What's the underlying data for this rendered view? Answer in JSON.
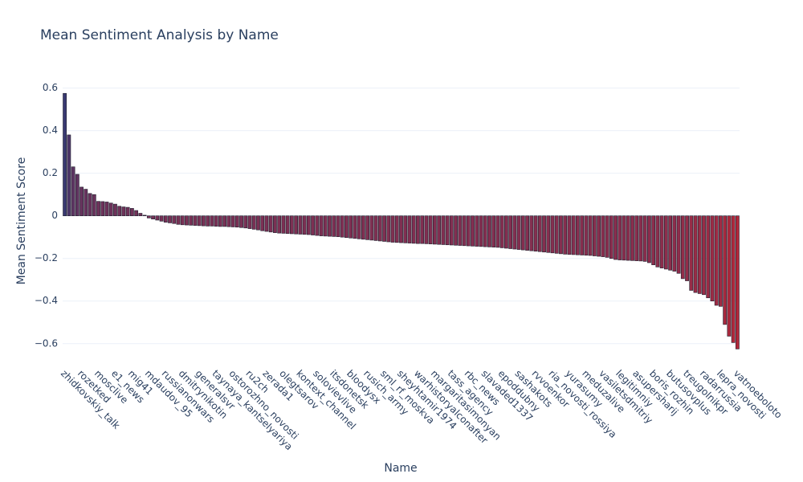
{
  "chart_data": {
    "type": "bar",
    "title": "Mean Sentiment Analysis by Name",
    "xlabel": "Name",
    "ylabel": "Mean Sentiment Score",
    "categories": [
      "zhidkovskiy_talk",
      null,
      null,
      null,
      "rozetked",
      null,
      null,
      null,
      "mosclive",
      null,
      null,
      null,
      "e1_news",
      null,
      null,
      null,
      "mig41",
      null,
      null,
      null,
      "mdaudov_95",
      null,
      null,
      null,
      "russianonwars",
      null,
      null,
      null,
      "dmitrynikotin",
      null,
      null,
      null,
      "generalsvr",
      null,
      null,
      null,
      "taynaya_kantselyariya",
      null,
      null,
      null,
      "ostorozhno_novosti",
      null,
      null,
      null,
      "ru2ch",
      null,
      null,
      null,
      "zerada1",
      null,
      null,
      null,
      "olegtsarov",
      null,
      null,
      null,
      "kontext_channel",
      null,
      null,
      null,
      "solovievlive",
      null,
      null,
      null,
      "itsdonetsk",
      null,
      null,
      null,
      "bloodysx",
      null,
      null,
      null,
      "rusich_army",
      null,
      null,
      null,
      "sml_rf_moskva",
      null,
      null,
      null,
      "sheyhtamir1974",
      null,
      null,
      null,
      "warhistoryalconafter",
      null,
      null,
      null,
      "margaritasimonyan",
      null,
      null,
      null,
      "tass_agency",
      null,
      null,
      null,
      "rbc_news",
      null,
      null,
      null,
      "slavaded1337",
      null,
      null,
      null,
      "epoddubny",
      null,
      null,
      null,
      "sashakots",
      null,
      null,
      null,
      "rvvoenkor",
      null,
      null,
      null,
      "ria_novosti_rossiya",
      null,
      null,
      null,
      "yurasumy",
      null,
      null,
      null,
      "meduzalive",
      null,
      null,
      null,
      "vasiletsdmitriy",
      null,
      null,
      null,
      "legitimniy",
      null,
      null,
      null,
      "asupersharij",
      null,
      null,
      null,
      "boris_rozhin",
      null,
      null,
      null,
      "butusovplus",
      null,
      null,
      null,
      "treugolnikpr",
      null,
      null,
      null,
      "radarrussia",
      null,
      null,
      null,
      "lepra_novosti",
      null,
      null,
      null,
      "vatnoeboloto"
    ],
    "values": [
      0.575,
      0.38,
      0.23,
      0.195,
      0.135,
      0.125,
      0.105,
      0.1,
      0.068,
      0.067,
      0.065,
      0.06,
      0.055,
      0.045,
      0.042,
      0.04,
      0.035,
      0.025,
      0.012,
      0.003,
      -0.01,
      -0.015,
      -0.02,
      -0.025,
      -0.03,
      -0.033,
      -0.036,
      -0.04,
      -0.042,
      -0.043,
      -0.044,
      -0.045,
      -0.046,
      -0.047,
      -0.048,
      -0.048,
      -0.049,
      -0.05,
      -0.05,
      -0.051,
      -0.052,
      -0.053,
      -0.055,
      -0.057,
      -0.06,
      -0.063,
      -0.066,
      -0.07,
      -0.073,
      -0.076,
      -0.079,
      -0.081,
      -0.082,
      -0.083,
      -0.084,
      -0.085,
      -0.086,
      -0.087,
      -0.088,
      -0.09,
      -0.092,
      -0.094,
      -0.095,
      -0.096,
      -0.097,
      -0.098,
      -0.1,
      -0.102,
      -0.104,
      -0.106,
      -0.108,
      -0.11,
      -0.112,
      -0.114,
      -0.116,
      -0.118,
      -0.12,
      -0.122,
      -0.124,
      -0.125,
      -0.126,
      -0.127,
      -0.128,
      -0.129,
      -0.13,
      -0.13,
      -0.131,
      -0.132,
      -0.133,
      -0.134,
      -0.135,
      -0.136,
      -0.137,
      -0.138,
      -0.139,
      -0.14,
      -0.141,
      -0.142,
      -0.143,
      -0.144,
      -0.145,
      -0.146,
      -0.147,
      -0.148,
      -0.15,
      -0.152,
      -0.154,
      -0.156,
      -0.158,
      -0.16,
      -0.162,
      -0.164,
      -0.166,
      -0.168,
      -0.17,
      -0.172,
      -0.174,
      -0.176,
      -0.178,
      -0.18,
      -0.181,
      -0.182,
      -0.183,
      -0.184,
      -0.185,
      -0.186,
      -0.188,
      -0.19,
      -0.192,
      -0.195,
      -0.2,
      -0.205,
      -0.207,
      -0.208,
      -0.209,
      -0.21,
      -0.211,
      -0.212,
      -0.214,
      -0.22,
      -0.23,
      -0.24,
      -0.245,
      -0.25,
      -0.255,
      -0.26,
      -0.27,
      -0.295,
      -0.305,
      -0.35,
      -0.36,
      -0.365,
      -0.37,
      -0.385,
      -0.4,
      -0.42,
      -0.425,
      -0.51,
      -0.565,
      -0.595,
      -0.625
    ],
    "colorscale": [
      "#b2283a",
      "#3a3a72"
    ],
    "ylim": [
      -0.665,
      0.64
    ],
    "yticks": [
      {
        "value": -0.6,
        "label": "−0.6"
      },
      {
        "value": -0.4,
        "label": "−0.4"
      },
      {
        "value": -0.2,
        "label": "−0.2"
      },
      0,
      0.2,
      0.4,
      0.6
    ],
    "grid": true
  }
}
